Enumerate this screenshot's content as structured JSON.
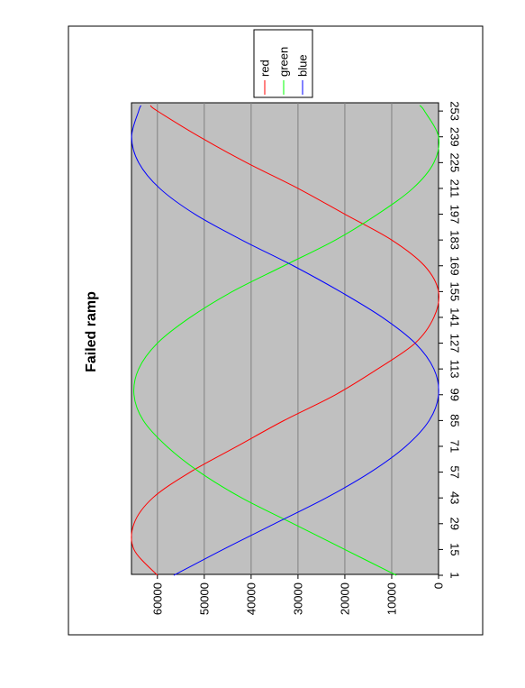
{
  "chart_data": {
    "type": "line",
    "title": "Failed ramp",
    "xlabel": "",
    "ylabel": "",
    "orientation": "rotated-90-clockwise",
    "x_domain": [
      1,
      256
    ],
    "x_ticks": [
      1,
      15,
      29,
      43,
      57,
      71,
      85,
      99,
      113,
      127,
      141,
      155,
      169,
      183,
      197,
      211,
      225,
      239,
      253
    ],
    "y_domain": [
      0,
      65535
    ],
    "y_ticks": [
      0,
      10000,
      20000,
      30000,
      40000,
      50000,
      60000
    ],
    "grid": true,
    "background": "#c0c0c0",
    "legend_position": "top-right",
    "series": [
      {
        "name": "red",
        "color": "#ff0000",
        "x": [
          1,
          15,
          29,
          43,
          57,
          71,
          85,
          99,
          113,
          127,
          141,
          155,
          169,
          183,
          197,
          211,
          225,
          239,
          253,
          256
        ],
        "y": [
          60000,
          65000,
          65000,
          61000,
          53000,
          43000,
          33000,
          22000,
          13000,
          5000,
          1000,
          0,
          3000,
          10000,
          20000,
          30000,
          41000,
          51000,
          60000,
          61500
        ]
      },
      {
        "name": "green",
        "color": "#00ff00",
        "x": [
          1,
          15,
          29,
          43,
          57,
          71,
          85,
          99,
          113,
          127,
          141,
          155,
          169,
          183,
          197,
          211,
          225,
          239,
          253,
          256
        ],
        "y": [
          9000,
          20000,
          31000,
          42000,
          51000,
          58000,
          63000,
          65000,
          64000,
          60000,
          53000,
          44000,
          33000,
          22000,
          13000,
          5500,
          1000,
          0,
          3000,
          4000
        ]
      },
      {
        "name": "blue",
        "color": "#0000ff",
        "x": [
          1,
          15,
          29,
          43,
          57,
          71,
          85,
          99,
          113,
          127,
          141,
          155,
          169,
          183,
          197,
          211,
          225,
          239,
          253,
          256
        ],
        "y": [
          56500,
          46000,
          35000,
          24000,
          14500,
          7000,
          2000,
          0,
          1000,
          5000,
          12000,
          21000,
          31000,
          42000,
          52000,
          59500,
          64000,
          65500,
          64000,
          63500
        ]
      }
    ]
  }
}
